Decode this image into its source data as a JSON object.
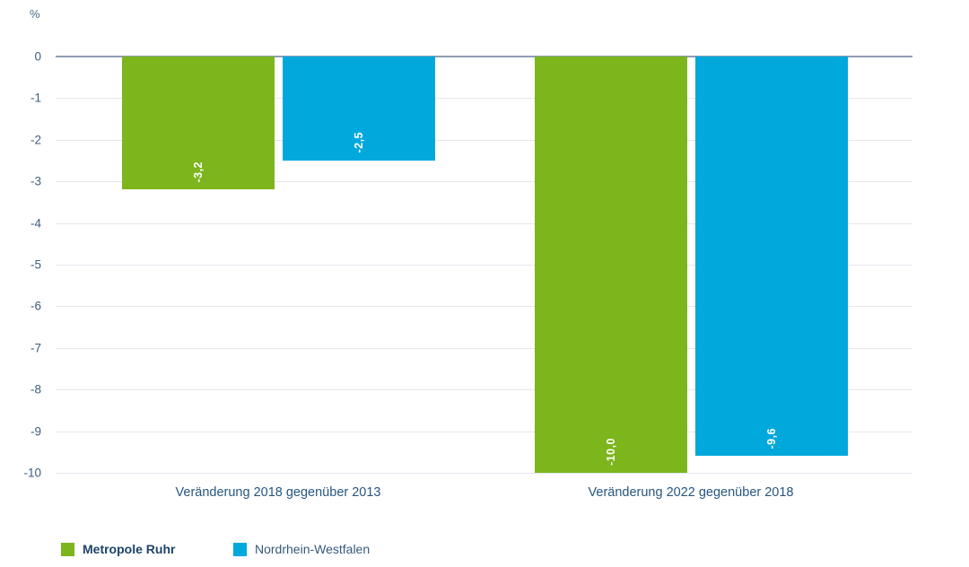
{
  "chart_data": {
    "type": "bar",
    "title": "",
    "unit_label": "%",
    "categories": [
      "Veränderung 2018 gegenüber 2013",
      "Veränderung 2022 gegenüber 2018"
    ],
    "series": [
      {
        "name": "Metropole Ruhr",
        "color": "#7db51d",
        "values": [
          -3.2,
          -10.0
        ],
        "value_labels": [
          "-3,2",
          "-10,0"
        ]
      },
      {
        "name": "Nordrhein-Westfalen",
        "color": "#00a8dc",
        "values": [
          -2.5,
          -9.6
        ],
        "value_labels": [
          "-2,5",
          "-9,6"
        ]
      }
    ],
    "ylim": [
      -10,
      0
    ],
    "yticks": [
      0,
      -1,
      -2,
      -3,
      -4,
      -5,
      -6,
      -7,
      -8,
      -9,
      -10
    ],
    "grid": "horizontal",
    "legend_position": "bottom-left",
    "bar_value_label_rotation": -90
  },
  "colors": {
    "axis_text": "#3f5d7c",
    "category_text": "#27567f",
    "legend_emphasis_text": "#1c4368",
    "legend_text": "#35597c",
    "gridline": "#e3e7ed",
    "zero_line": "#8e9db4",
    "bar_value_text": "#ffffff"
  }
}
